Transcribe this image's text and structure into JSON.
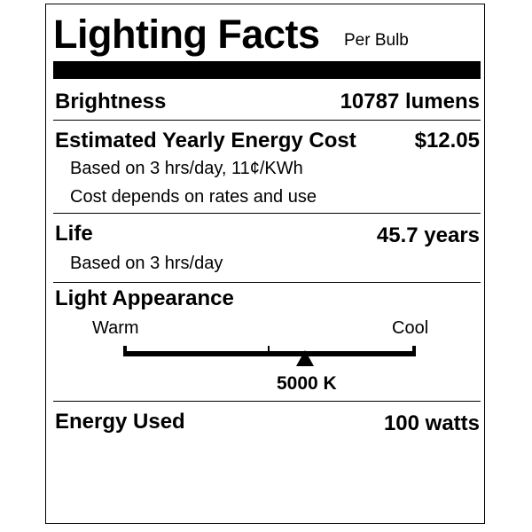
{
  "header": {
    "title": "Lighting Facts",
    "subtitle": "Per Bulb"
  },
  "brightness": {
    "label": "Brightness",
    "value": "10787 lumens"
  },
  "energy_cost": {
    "label": "Estimated Yearly Energy Cost",
    "value": "$12.05",
    "note1": "Based on 3 hrs/day, 11¢/KWh",
    "note2": "Cost depends on rates and use"
  },
  "life": {
    "label": "Life",
    "value": "45.7 years",
    "note": "Based on 3 hrs/day"
  },
  "appearance": {
    "label": "Light Appearance",
    "warm": "Warm",
    "cool": "Cool",
    "value": "5000 K",
    "scale_position": 0.62
  },
  "energy_used": {
    "label": "Energy Used",
    "value": "100 watts"
  }
}
